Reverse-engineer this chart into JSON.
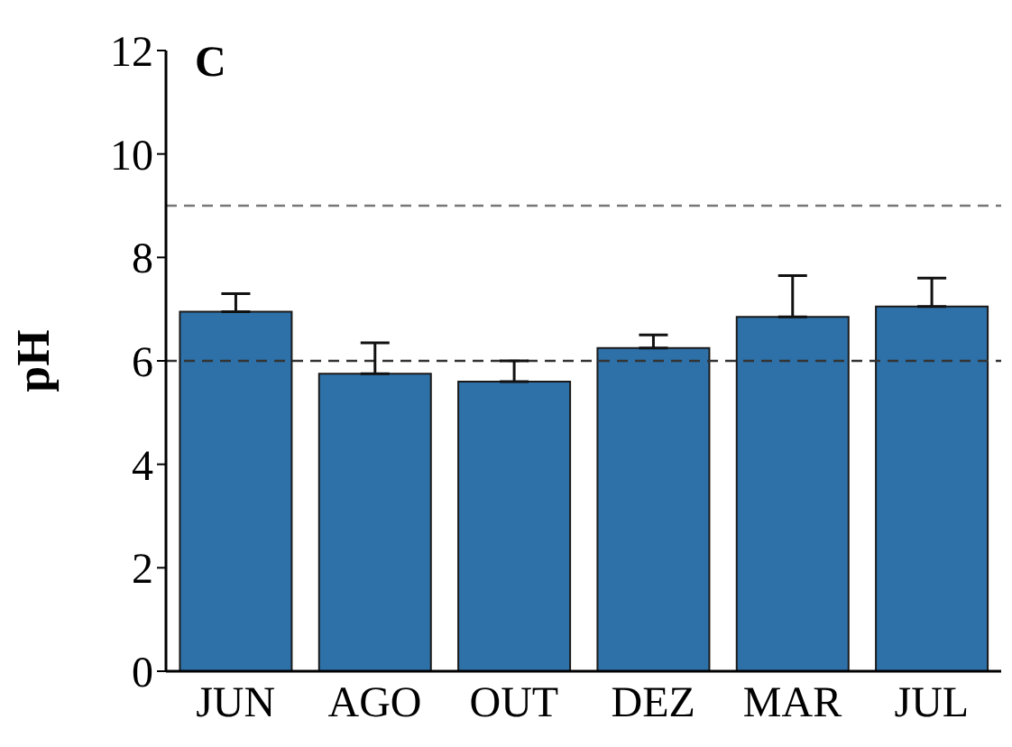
{
  "chart_data": {
    "type": "bar",
    "title": "C",
    "ylabel": "pH",
    "categories": [
      "JUN",
      "AGO",
      "OUT",
      "DEZ",
      "MAR",
      "JUL"
    ],
    "values": [
      6.95,
      5.75,
      5.6,
      6.25,
      6.85,
      7.05
    ],
    "errors": [
      [
        6.95,
        7.3
      ],
      [
        5.75,
        6.35
      ],
      [
        5.6,
        6.0
      ],
      [
        6.25,
        6.5
      ],
      [
        6.85,
        7.65
      ],
      [
        7.05,
        7.6
      ]
    ],
    "color": "#2e71a9",
    "ylim": [
      0,
      12
    ],
    "yticks": [
      0,
      2,
      4,
      6,
      8,
      10,
      12
    ],
    "grid": false,
    "legend": false,
    "ref_lines": [
      {
        "axis": "y",
        "value": 6,
        "color": "#333333",
        "line_style": "dashed"
      },
      {
        "axis": "y",
        "value": 9,
        "color": "#777777",
        "line_style": "dashed"
      }
    ]
  }
}
